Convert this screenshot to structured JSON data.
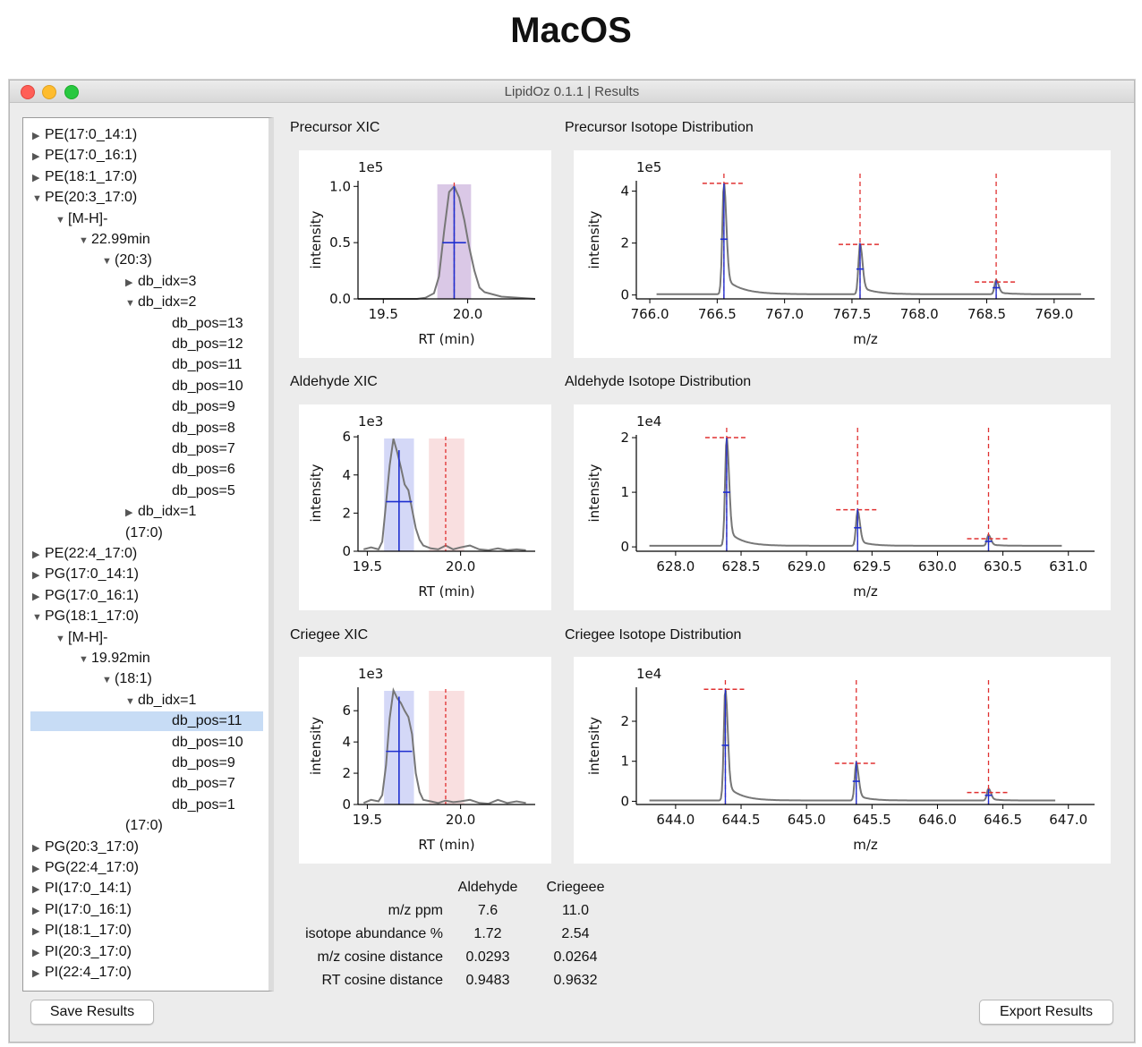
{
  "heading": "MacOS",
  "window_title": "LipidOz 0.1.1 | Results",
  "tree": [
    {
      "label": "PE(17:0_14:1)",
      "indent": 0,
      "arrow": "right"
    },
    {
      "label": "PE(17:0_16:1)",
      "indent": 0,
      "arrow": "right"
    },
    {
      "label": "PE(18:1_17:0)",
      "indent": 0,
      "arrow": "right"
    },
    {
      "label": "PE(20:3_17:0)",
      "indent": 0,
      "arrow": "down"
    },
    {
      "label": "[M-H]-",
      "indent": 1,
      "arrow": "down"
    },
    {
      "label": "22.99min",
      "indent": 2,
      "arrow": "down"
    },
    {
      "label": "(20:3)",
      "indent": 3,
      "arrow": "down"
    },
    {
      "label": "db_idx=3",
      "indent": 4,
      "arrow": "right"
    },
    {
      "label": "db_idx=2",
      "indent": 4,
      "arrow": "down"
    },
    {
      "label": "db_pos=13",
      "indent": 5,
      "arrow": ""
    },
    {
      "label": "db_pos=12",
      "indent": 5,
      "arrow": ""
    },
    {
      "label": "db_pos=11",
      "indent": 5,
      "arrow": ""
    },
    {
      "label": "db_pos=10",
      "indent": 5,
      "arrow": ""
    },
    {
      "label": "db_pos=9",
      "indent": 5,
      "arrow": ""
    },
    {
      "label": "db_pos=8",
      "indent": 5,
      "arrow": ""
    },
    {
      "label": "db_pos=7",
      "indent": 5,
      "arrow": ""
    },
    {
      "label": "db_pos=6",
      "indent": 5,
      "arrow": ""
    },
    {
      "label": "db_pos=5",
      "indent": 5,
      "arrow": ""
    },
    {
      "label": "db_idx=1",
      "indent": 4,
      "arrow": "right"
    },
    {
      "label": "(17:0)",
      "indent": 3,
      "arrow": ""
    },
    {
      "label": "PE(22:4_17:0)",
      "indent": 0,
      "arrow": "right"
    },
    {
      "label": "PG(17:0_14:1)",
      "indent": 0,
      "arrow": "right"
    },
    {
      "label": "PG(17:0_16:1)",
      "indent": 0,
      "arrow": "right"
    },
    {
      "label": "PG(18:1_17:0)",
      "indent": 0,
      "arrow": "down"
    },
    {
      "label": "[M-H]-",
      "indent": 1,
      "arrow": "down"
    },
    {
      "label": "19.92min",
      "indent": 2,
      "arrow": "down"
    },
    {
      "label": "(18:1)",
      "indent": 3,
      "arrow": "down"
    },
    {
      "label": "db_idx=1",
      "indent": 4,
      "arrow": "down"
    },
    {
      "label": "db_pos=11",
      "indent": 5,
      "arrow": "",
      "selected": true
    },
    {
      "label": "db_pos=10",
      "indent": 5,
      "arrow": ""
    },
    {
      "label": "db_pos=9",
      "indent": 5,
      "arrow": ""
    },
    {
      "label": "db_pos=7",
      "indent": 5,
      "arrow": ""
    },
    {
      "label": "db_pos=1",
      "indent": 5,
      "arrow": ""
    },
    {
      "label": "(17:0)",
      "indent": 3,
      "arrow": ""
    },
    {
      "label": "PG(20:3_17:0)",
      "indent": 0,
      "arrow": "right"
    },
    {
      "label": "PG(22:4_17:0)",
      "indent": 0,
      "arrow": "right"
    },
    {
      "label": "PI(17:0_14:1)",
      "indent": 0,
      "arrow": "right"
    },
    {
      "label": "PI(17:0_16:1)",
      "indent": 0,
      "arrow": "right"
    },
    {
      "label": "PI(18:1_17:0)",
      "indent": 0,
      "arrow": "right"
    },
    {
      "label": "PI(20:3_17:0)",
      "indent": 0,
      "arrow": "right"
    },
    {
      "label": "PI(22:4_17:0)",
      "indent": 0,
      "arrow": "right"
    }
  ],
  "plots": {
    "precursor_xic_title": "Precursor XIC",
    "precursor_iso_title": "Precursor Isotope Distribution",
    "aldehyde_xic_title": "Aldehyde XIC",
    "aldehyde_iso_title": "Aldehyde Isotope Distribution",
    "criegee_xic_title": "Criegee XIC",
    "criegee_iso_title": "Criegee Isotope Distribution"
  },
  "chart_data": [
    {
      "id": "precursor_xic",
      "type": "line",
      "xlabel": "RT (min)",
      "ylabel": "intensity",
      "scale_label": "1e5",
      "xlim": [
        19.35,
        20.4
      ],
      "ylim": [
        0,
        1.05
      ],
      "xticks": [
        19.5,
        20.0
      ],
      "xtick_labels": [
        "19.5",
        "20.0"
      ],
      "yticks": [
        0,
        0.5,
        1.0
      ],
      "ytick_labels": [
        "0.0",
        "0.5",
        "1.0"
      ],
      "x": [
        19.35,
        19.5,
        19.6,
        19.7,
        19.75,
        19.8,
        19.83,
        19.86,
        19.89,
        19.92,
        19.95,
        19.98,
        20.01,
        20.04,
        20.07,
        20.1,
        20.15,
        20.2,
        20.3,
        20.4
      ],
      "y": [
        0,
        0,
        0,
        0,
        0.01,
        0.05,
        0.2,
        0.6,
        0.95,
        1.0,
        0.9,
        0.7,
        0.45,
        0.25,
        0.1,
        0.06,
        0.04,
        0.02,
        0.01,
        0
      ],
      "marker_x": 19.92,
      "marker_y": 0.5,
      "marker_halfwidth": 0.07,
      "marker_top": 1.0,
      "ref_x": 19.92,
      "bands": [
        {
          "x0": 19.82,
          "x1": 20.02,
          "color": "#cdb5de"
        }
      ]
    },
    {
      "id": "precursor_iso",
      "type": "line",
      "xlabel": "m/z",
      "ylabel": "intensity",
      "scale_label": "1e5",
      "xlim": [
        765.9,
        769.3
      ],
      "ylim": [
        -0.15,
        4.4
      ],
      "xticks": [
        766.0,
        766.5,
        767.0,
        767.5,
        768.0,
        768.5,
        769.0
      ],
      "xtick_labels": [
        "766.0",
        "766.5",
        "767.0",
        "767.5",
        "768.0",
        "768.5",
        "769.0"
      ],
      "yticks": [
        0,
        2,
        4
      ],
      "ytick_labels": [
        "0",
        "2",
        "4"
      ],
      "peaks": [
        {
          "x": 766.55,
          "h": 4.3,
          "tail": 0.35
        },
        {
          "x": 767.56,
          "h": 1.95,
          "tail": 0.3
        },
        {
          "x": 768.57,
          "h": 0.55,
          "tail": 0.25
        }
      ],
      "baseline": 0.03,
      "x_start": 766.05,
      "x_end": 769.2,
      "expected": [
        {
          "x": 766.55,
          "y": 4.3
        },
        {
          "x": 767.56,
          "y": 1.95
        },
        {
          "x": 768.57,
          "y": 0.5
        }
      ],
      "observed": [
        {
          "x": 766.55,
          "y": 2.15
        },
        {
          "x": 767.56,
          "y": 1.0
        },
        {
          "x": 768.57,
          "y": 0.28
        }
      ]
    },
    {
      "id": "aldehyde_xic",
      "type": "line",
      "xlabel": "RT (min)",
      "ylabel": "intensity",
      "scale_label": "1e3",
      "xlim": [
        19.45,
        20.4
      ],
      "ylim": [
        0,
        6.1
      ],
      "xticks": [
        19.5,
        20.0
      ],
      "xtick_labels": [
        "19.5",
        "20.0"
      ],
      "yticks": [
        0,
        2,
        4,
        6
      ],
      "ytick_labels": [
        "0",
        "2",
        "4",
        "6"
      ],
      "x": [
        19.48,
        19.52,
        19.56,
        19.58,
        19.6,
        19.62,
        19.64,
        19.66,
        19.68,
        19.7,
        19.72,
        19.74,
        19.76,
        19.78,
        19.8,
        19.84,
        19.88,
        19.92,
        19.96,
        20.0,
        20.05,
        20.1,
        20.15,
        20.2,
        20.25,
        20.3,
        20.35
      ],
      "y": [
        0.1,
        0.2,
        0.1,
        0.5,
        2.5,
        4.5,
        5.9,
        5.2,
        4.4,
        3.5,
        3.2,
        2.2,
        1.2,
        0.6,
        0.3,
        0.15,
        0.1,
        0.3,
        0.1,
        0.2,
        0.3,
        0.1,
        0.05,
        0.15,
        0.05,
        0.1,
        0.05
      ],
      "marker_x": 19.67,
      "marker_y": 2.6,
      "marker_halfwidth": 0.07,
      "marker_top": 5.3,
      "ref_x": 19.92,
      "bands": [
        {
          "x0": 19.59,
          "x1": 19.75,
          "color": "#c6cbf4"
        },
        {
          "x0": 19.83,
          "x1": 20.02,
          "color": "#f7d4d6"
        }
      ]
    },
    {
      "id": "aldehyde_iso",
      "type": "line",
      "xlabel": "m/z",
      "ylabel": "intensity",
      "scale_label": "1e4",
      "xlim": [
        627.7,
        631.2
      ],
      "ylim": [
        -0.08,
        2.05
      ],
      "xticks": [
        628.0,
        628.5,
        629.0,
        629.5,
        630.0,
        630.5,
        631.0
      ],
      "xtick_labels": [
        "628.0",
        "628.5",
        "629.0",
        "629.5",
        "630.0",
        "630.5",
        "631.0"
      ],
      "yticks": [
        0,
        1,
        2
      ],
      "ytick_labels": [
        "0",
        "1",
        "2"
      ],
      "peaks": [
        {
          "x": 628.39,
          "h": 2.0,
          "tail": 0.3
        },
        {
          "x": 629.39,
          "h": 0.65,
          "tail": 0.25
        },
        {
          "x": 630.39,
          "h": 0.2,
          "tail": 0.2
        }
      ],
      "baseline": 0.02,
      "x_start": 627.8,
      "x_end": 630.95,
      "expected": [
        {
          "x": 628.39,
          "y": 2.0
        },
        {
          "x": 629.39,
          "y": 0.68
        },
        {
          "x": 630.39,
          "y": 0.15
        }
      ],
      "observed": [
        {
          "x": 628.39,
          "y": 1.0
        },
        {
          "x": 629.39,
          "y": 0.35
        },
        {
          "x": 630.39,
          "y": 0.1
        }
      ]
    },
    {
      "id": "criegee_xic",
      "type": "line",
      "xlabel": "RT (min)",
      "ylabel": "intensity",
      "scale_label": "1e3",
      "xlim": [
        19.45,
        20.4
      ],
      "ylim": [
        0,
        7.5
      ],
      "xticks": [
        19.5,
        20.0
      ],
      "xtick_labels": [
        "19.5",
        "20.0"
      ],
      "yticks": [
        0,
        2,
        4,
        6
      ],
      "ytick_labels": [
        "0",
        "2",
        "4",
        "6"
      ],
      "x": [
        19.48,
        19.52,
        19.56,
        19.58,
        19.6,
        19.62,
        19.64,
        19.66,
        19.68,
        19.7,
        19.72,
        19.74,
        19.76,
        19.78,
        19.8,
        19.84,
        19.88,
        19.92,
        19.96,
        20.0,
        20.05,
        20.1,
        20.15,
        20.2,
        20.25,
        20.3,
        20.35
      ],
      "y": [
        0.1,
        0.3,
        0.2,
        0.6,
        2.5,
        5.5,
        7.3,
        6.8,
        6.5,
        6.0,
        5.6,
        4.5,
        2.0,
        0.8,
        0.3,
        0.2,
        0.1,
        0.25,
        0.15,
        0.2,
        0.3,
        0.1,
        0.05,
        0.3,
        0.1,
        0.2,
        0.1
      ],
      "marker_x": 19.67,
      "marker_y": 3.4,
      "marker_halfwidth": 0.07,
      "marker_top": 6.9,
      "ref_x": 19.92,
      "bands": [
        {
          "x0": 19.59,
          "x1": 19.75,
          "color": "#c6cbf4"
        },
        {
          "x0": 19.83,
          "x1": 20.02,
          "color": "#f7d4d6"
        }
      ]
    },
    {
      "id": "criegee_iso",
      "type": "line",
      "xlabel": "m/z",
      "ylabel": "intensity",
      "scale_label": "1e4",
      "xlim": [
        643.7,
        647.2
      ],
      "ylim": [
        -0.08,
        2.85
      ],
      "xticks": [
        644.0,
        644.5,
        645.0,
        645.5,
        646.0,
        646.5,
        647.0
      ],
      "xtick_labels": [
        "644.0",
        "644.5",
        "645.0",
        "645.5",
        "646.0",
        "646.5",
        "647.0"
      ],
      "yticks": [
        0,
        1,
        2
      ],
      "ytick_labels": [
        "0",
        "1",
        "2"
      ],
      "peaks": [
        {
          "x": 644.38,
          "h": 2.8,
          "tail": 0.3
        },
        {
          "x": 645.38,
          "h": 0.95,
          "tail": 0.25
        },
        {
          "x": 646.39,
          "h": 0.3,
          "tail": 0.2
        }
      ],
      "baseline": 0.02,
      "x_start": 643.8,
      "x_end": 646.9,
      "expected": [
        {
          "x": 644.38,
          "y": 2.8
        },
        {
          "x": 645.38,
          "y": 0.95
        },
        {
          "x": 646.39,
          "y": 0.22
        }
      ],
      "observed": [
        {
          "x": 644.38,
          "y": 1.4
        },
        {
          "x": 645.38,
          "y": 0.5
        },
        {
          "x": 646.39,
          "y": 0.15
        }
      ]
    }
  ],
  "metrics": {
    "col_aldehyde": "Aldehyde",
    "col_criegee": "Criegeee",
    "rows": [
      {
        "label": "m/z ppm",
        "aldehyde": "7.6",
        "criegee": "11.0"
      },
      {
        "label": "isotope abundance %",
        "aldehyde": "1.72",
        "criegee": "2.54"
      },
      {
        "label": "m/z cosine distance",
        "aldehyde": "0.0293",
        "criegee": "0.0264"
      },
      {
        "label": "RT cosine distance",
        "aldehyde": "0.9483",
        "criegee": "0.9632"
      }
    ]
  },
  "buttons": {
    "save": "Save Results",
    "export": "Export Results"
  }
}
